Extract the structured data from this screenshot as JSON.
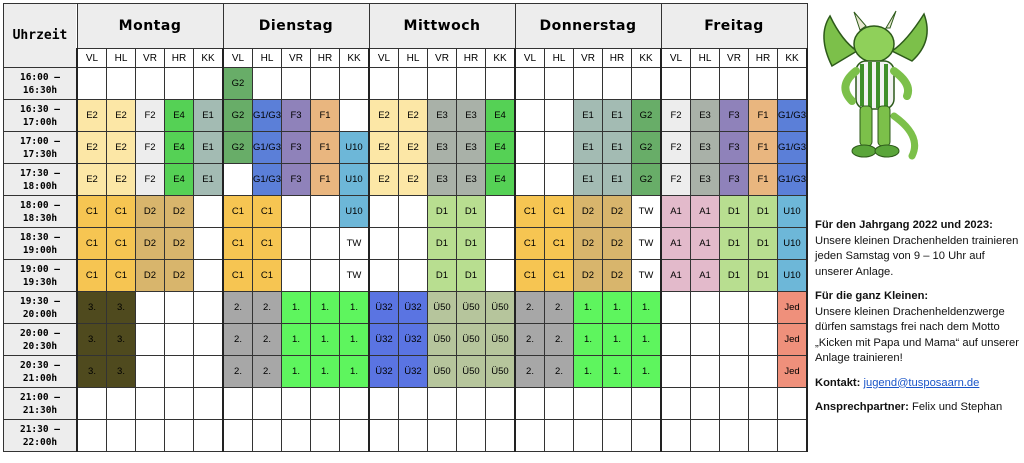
{
  "header": {
    "time": "Uhrzeit",
    "days": [
      {
        "name": "Montag",
        "columns": [
          "VL",
          "HL",
          "VR",
          "HR",
          "KK"
        ]
      },
      {
        "name": "Dienstag",
        "columns": [
          "VL",
          "HL",
          "VR",
          "HR",
          "KK"
        ]
      },
      {
        "name": "Mittwoch",
        "columns": [
          "VL",
          "HL",
          "VR",
          "HR",
          "KK"
        ]
      },
      {
        "name": "Donnerstag",
        "columns": [
          "VL",
          "HL",
          "VR",
          "HR",
          "KK"
        ]
      },
      {
        "name": "Freitag",
        "columns": [
          "VL",
          "HL",
          "VR",
          "HR",
          "KK"
        ]
      }
    ]
  },
  "rows": [
    {
      "time": [
        "16:00 –",
        "16:30h"
      ],
      "cells": [
        [
          null,
          null,
          null,
          null,
          null
        ],
        [
          "G2",
          null,
          null,
          null,
          null
        ],
        [
          null,
          null,
          null,
          null,
          null
        ],
        [
          null,
          null,
          null,
          null,
          null
        ],
        [
          null,
          null,
          null,
          null,
          null
        ]
      ]
    },
    {
      "time": [
        "16:30 –",
        "17:00h"
      ],
      "cells": [
        [
          "E2",
          "E2",
          "F2",
          "E4",
          "E1"
        ],
        [
          "G2",
          "G1/G3",
          "F3",
          "F1",
          null
        ],
        [
          "E2",
          "E2",
          "E3",
          "E3",
          "E4"
        ],
        [
          null,
          null,
          "E1",
          "E1",
          "G2"
        ],
        [
          "F2",
          "E3",
          "F3",
          "F1",
          "G1/G3"
        ]
      ]
    },
    {
      "time": [
        "17:00 –",
        "17:30h"
      ],
      "cells": [
        [
          "E2",
          "E2",
          "F2",
          "E4",
          "E1"
        ],
        [
          "G2",
          "G1/G3",
          "F3",
          "F1",
          "U10"
        ],
        [
          "E2",
          "E2",
          "E3",
          "E3",
          "E4"
        ],
        [
          null,
          null,
          "E1",
          "E1",
          "G2"
        ],
        [
          "F2",
          "E3",
          "F3",
          "F1",
          "G1/G3"
        ]
      ]
    },
    {
      "time": [
        "17:30 –",
        "18:00h"
      ],
      "cells": [
        [
          "E2",
          "E2",
          "F2",
          "E4",
          "E1"
        ],
        [
          null,
          "G1/G3",
          "F3",
          "F1",
          "U10"
        ],
        [
          "E2",
          "E2",
          "E3",
          "E3",
          "E4"
        ],
        [
          null,
          null,
          "E1",
          "E1",
          "G2"
        ],
        [
          "F2",
          "E3",
          "F3",
          "F1",
          "G1/G3"
        ]
      ]
    },
    {
      "time": [
        "18:00 –",
        "18:30h"
      ],
      "cells": [
        [
          "C1",
          "C1",
          "D2",
          "D2",
          null
        ],
        [
          "C1",
          "C1",
          null,
          null,
          "U10"
        ],
        [
          null,
          null,
          "D1",
          "D1",
          null
        ],
        [
          "C1",
          "C1",
          "D2",
          "D2",
          "TW"
        ],
        [
          "A1",
          "A1",
          "D1",
          "D1",
          "U10"
        ]
      ]
    },
    {
      "time": [
        "18:30 –",
        "19:00h"
      ],
      "cells": [
        [
          "C1",
          "C1",
          "D2",
          "D2",
          null
        ],
        [
          "C1",
          "C1",
          null,
          null,
          "TW"
        ],
        [
          null,
          null,
          "D1",
          "D1",
          null
        ],
        [
          "C1",
          "C1",
          "D2",
          "D2",
          "TW"
        ],
        [
          "A1",
          "A1",
          "D1",
          "D1",
          "U10"
        ]
      ]
    },
    {
      "time": [
        "19:00 –",
        "19:30h"
      ],
      "cells": [
        [
          "C1",
          "C1",
          "D2",
          "D2",
          null
        ],
        [
          "C1",
          "C1",
          null,
          null,
          "TW"
        ],
        [
          null,
          null,
          "D1",
          "D1",
          null
        ],
        [
          "C1",
          "C1",
          "D2",
          "D2",
          "TW"
        ],
        [
          "A1",
          "A1",
          "D1",
          "D1",
          "U10"
        ]
      ]
    },
    {
      "time": [
        "19:30 –",
        "20:00h"
      ],
      "cells": [
        [
          "3.",
          "3.",
          null,
          null,
          null
        ],
        [
          "2.",
          "2.",
          "1.",
          "1.",
          "1."
        ],
        [
          "Ü32",
          "Ü32",
          "Ü50",
          "Ü50",
          "Ü50"
        ],
        [
          "2.",
          "2.",
          "1.",
          "1.",
          "1."
        ],
        [
          null,
          null,
          null,
          null,
          "Jed"
        ]
      ]
    },
    {
      "time": [
        "20:00 –",
        "20:30h"
      ],
      "cells": [
        [
          "3.",
          "3.",
          null,
          null,
          null
        ],
        [
          "2.",
          "2.",
          "1.",
          "1.",
          "1."
        ],
        [
          "Ü32",
          "Ü32",
          "Ü50",
          "Ü50",
          "Ü50"
        ],
        [
          "2.",
          "2.",
          "1.",
          "1.",
          "1."
        ],
        [
          null,
          null,
          null,
          null,
          "Jed"
        ]
      ]
    },
    {
      "time": [
        "20:30 –",
        "21:00h"
      ],
      "cells": [
        [
          "3.",
          "3.",
          null,
          null,
          null
        ],
        [
          "2.",
          "2.",
          "1.",
          "1.",
          "1."
        ],
        [
          "Ü32",
          "Ü32",
          "Ü50",
          "Ü50",
          "Ü50"
        ],
        [
          "2.",
          "2.",
          "1.",
          "1.",
          "1."
        ],
        [
          null,
          null,
          null,
          null,
          "Jed"
        ]
      ]
    },
    {
      "time": [
        "21:00 –",
        "21:30h"
      ],
      "cells": [
        [
          null,
          null,
          null,
          null,
          null
        ],
        [
          null,
          null,
          null,
          null,
          null
        ],
        [
          null,
          null,
          null,
          null,
          null
        ],
        [
          null,
          null,
          null,
          null,
          null
        ],
        [
          null,
          null,
          null,
          null,
          null
        ]
      ]
    },
    {
      "time": [
        "21:30 –",
        "22:00h"
      ],
      "cells": [
        [
          null,
          null,
          null,
          null,
          null
        ],
        [
          null,
          null,
          null,
          null,
          null
        ],
        [
          null,
          null,
          null,
          null,
          null
        ],
        [
          null,
          null,
          null,
          null,
          null
        ],
        [
          null,
          null,
          null,
          null,
          null
        ]
      ]
    }
  ],
  "colors": {
    "E2": "#fce7a6",
    "F2": "#ededed",
    "E4": "#55d155",
    "E1": "#a3bbb3",
    "G2": "#68ad68",
    "G1/G3": "#5b7fd8",
    "F3": "#8f82ba",
    "F1": "#e9b67f",
    "U10": "#6db7d8",
    "E3": "#a9b1a8",
    "C1": "#f6c552",
    "D2": "#d8b56c",
    "TW": "#ffffff",
    "D1": "#b8de90",
    "A1": "#e3bacb",
    "3.": "#4f4a1e",
    "2.": "#a7a7a7",
    "1.": "#5ef55e",
    "Ü32": "#5a74e2",
    "Ü50": "#b6c59c",
    "Jed": "#ef907b"
  },
  "info": {
    "blocks": [
      {
        "heading": "Für den Jahrgang 2022 und 2023:",
        "text": "Unsere kleinen Drachenhelden trainieren jeden Samstag von 9 – 10 Uhr auf unserer Anlage."
      },
      {
        "heading": "Für die ganz Kleinen:",
        "text": "Unsere kleinen Drachenheldenzwerge dürfen samstags frei nach dem Motto „Kicken mit Papa und Mama“ auf unserer Anlage trainieren!"
      }
    ],
    "contact": {
      "label": "Kontakt:",
      "email": "jugend@tusposaarn.de"
    },
    "persons": {
      "label": "Ansprechpartner:",
      "text": "Felix und Stephan"
    }
  }
}
